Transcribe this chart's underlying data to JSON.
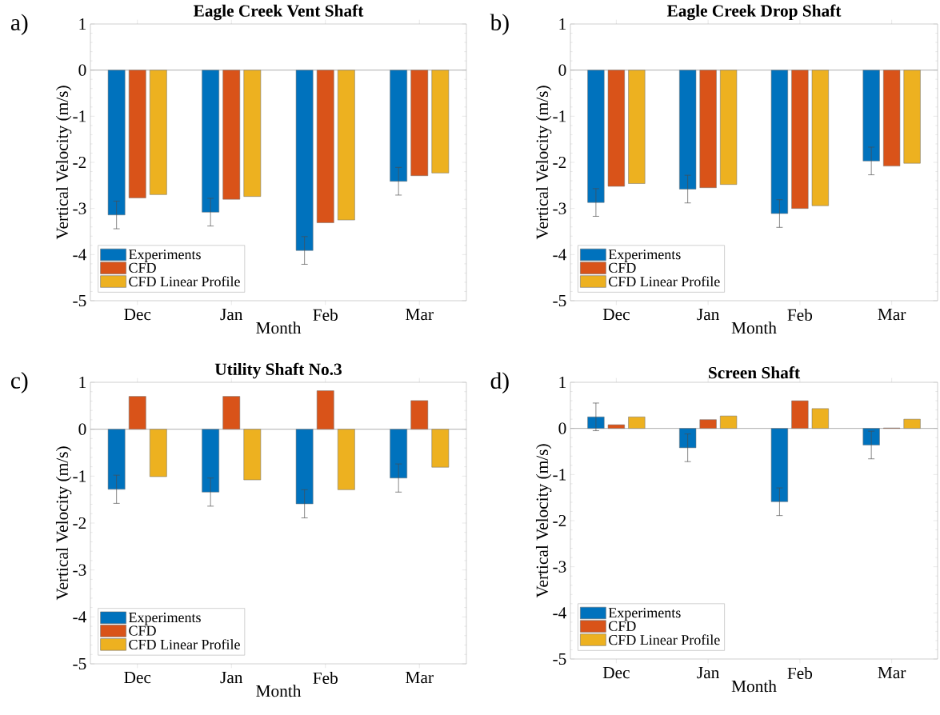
{
  "chart_data": [
    {
      "type": "bar",
      "title": "Eagle Creek Vent Shaft",
      "xlabel": "Month",
      "ylabel": "Vertical Velocity (m/s)",
      "categories": [
        "Dec",
        "Jan",
        "Feb",
        "Mar"
      ],
      "ylim": [
        -5,
        1
      ],
      "yticks": [
        -5,
        -4,
        -3,
        -2,
        -1,
        0,
        1
      ],
      "legend": "bottom left",
      "annotations": [
        "a)"
      ],
      "series": [
        {
          "name": "Experiments",
          "color": "#0072bd",
          "values": [
            -3.14,
            -3.08,
            -3.91,
            -2.41
          ],
          "errors": [
            0.3,
            0.3,
            0.3,
            0.3
          ]
        },
        {
          "name": "CFD",
          "color": "#d95319",
          "values": [
            -2.77,
            -2.8,
            -3.31,
            -2.29
          ]
        },
        {
          "name": "CFD Linear Profile",
          "color": "#edb120",
          "values": [
            -2.7,
            -2.74,
            -3.25,
            -2.23
          ]
        }
      ]
    },
    {
      "type": "bar",
      "title": "Eagle Creek Drop Shaft",
      "xlabel": "Month",
      "ylabel": "Vertical Velocity (m/s)",
      "categories": [
        "Dec",
        "Jan",
        "Feb",
        "Mar"
      ],
      "ylim": [
        -5,
        1
      ],
      "yticks": [
        -5,
        -4,
        -3,
        -2,
        -1,
        0,
        1
      ],
      "legend": "bottom left",
      "annotations": [
        "b)"
      ],
      "series": [
        {
          "name": "Experiments",
          "color": "#0072bd",
          "values": [
            -2.87,
            -2.58,
            -3.11,
            -1.97
          ],
          "errors": [
            0.3,
            0.3,
            0.3,
            0.3
          ]
        },
        {
          "name": "CFD",
          "color": "#d95319",
          "values": [
            -2.52,
            -2.55,
            -3.0,
            -2.08
          ]
        },
        {
          "name": "CFD Linear Profile",
          "color": "#edb120",
          "values": [
            -2.46,
            -2.48,
            -2.94,
            -2.02
          ]
        }
      ]
    },
    {
      "type": "bar",
      "title": "Utility Shaft No.3",
      "xlabel": "Month",
      "ylabel": "Vertical Velocity (m/s)",
      "categories": [
        "Dec",
        "Jan",
        "Feb",
        "Mar"
      ],
      "ylim": [
        -5,
        1
      ],
      "yticks": [
        -5,
        -4,
        -3,
        -2,
        -1,
        0,
        1
      ],
      "legend": "bottom left",
      "annotations": [
        "c)"
      ],
      "series": [
        {
          "name": "Experiments",
          "color": "#0072bd",
          "values": [
            -1.28,
            -1.34,
            -1.59,
            -1.04
          ],
          "errors": [
            0.3,
            0.3,
            0.3,
            0.3
          ]
        },
        {
          "name": "CFD",
          "color": "#d95319",
          "values": [
            0.7,
            0.7,
            0.82,
            0.61
          ]
        },
        {
          "name": "CFD Linear Profile",
          "color": "#edb120",
          "values": [
            -1.01,
            -1.08,
            -1.29,
            -0.81
          ]
        }
      ]
    },
    {
      "type": "bar",
      "title": "Screen Shaft",
      "xlabel": "Month",
      "ylabel": "Vertical Velocity (m/s)",
      "categories": [
        "Dec",
        "Jan",
        "Feb",
        "Mar"
      ],
      "ylim": [
        -5,
        1
      ],
      "yticks": [
        -5,
        -4,
        -3,
        -2,
        -1,
        0,
        1
      ],
      "legend": "bottom left",
      "annotations": [
        "d)"
      ],
      "series": [
        {
          "name": "Experiments",
          "color": "#0072bd",
          "values": [
            0.25,
            -0.42,
            -1.59,
            -0.36
          ],
          "errors": [
            0.3,
            0.3,
            0.3,
            0.3
          ]
        },
        {
          "name": "CFD",
          "color": "#d95319",
          "values": [
            0.08,
            0.19,
            0.6,
            0.01
          ]
        },
        {
          "name": "CFD Linear Profile",
          "color": "#edb120",
          "values": [
            0.25,
            0.27,
            0.43,
            0.2
          ]
        }
      ]
    }
  ]
}
